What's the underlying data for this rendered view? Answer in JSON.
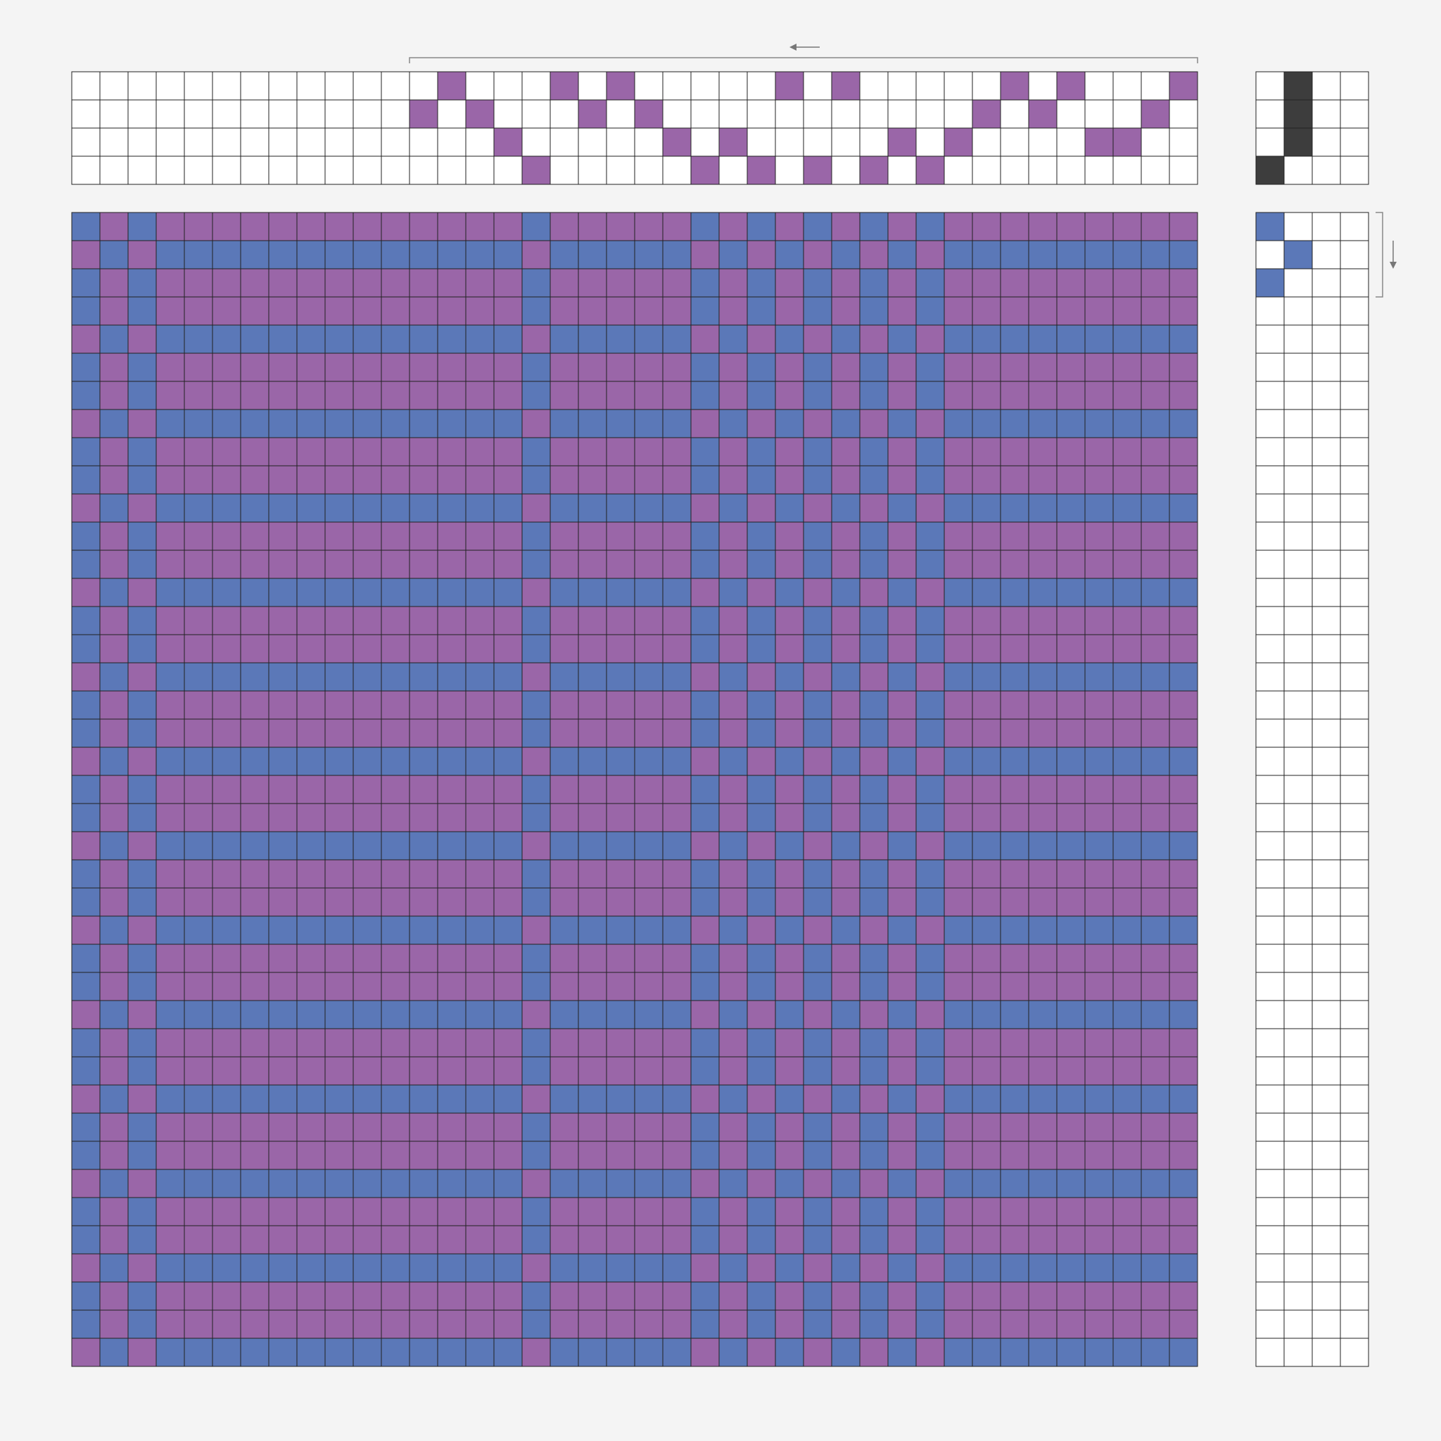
{
  "draft": {
    "shafts": 4,
    "treadles": 4,
    "warp_color": "#5b78b8",
    "weft_color": "#9a66a8",
    "tieup_color": "#3d3d3d",
    "threading": [
      null,
      null,
      null,
      null,
      null,
      null,
      null,
      null,
      null,
      null,
      null,
      null,
      3,
      4,
      3,
      2,
      1,
      4,
      3,
      4,
      3,
      2,
      1,
      2,
      1,
      4,
      1,
      4,
      1,
      2,
      1,
      2,
      3,
      4,
      3,
      4,
      2,
      2,
      3,
      4
    ],
    "tieup": [
      [
        1
      ],
      [
        2,
        3,
        4
      ],
      [],
      []
    ],
    "treadling": [
      1,
      2,
      1,
      null,
      null,
      null,
      null,
      null,
      null,
      null,
      null,
      null,
      null,
      null,
      null,
      null,
      null,
      null,
      null,
      null,
      null,
      null,
      null,
      null,
      null,
      null,
      null,
      null,
      null,
      null,
      null,
      null,
      null,
      null,
      null,
      null,
      null,
      null,
      null,
      null,
      null
    ]
  }
}
